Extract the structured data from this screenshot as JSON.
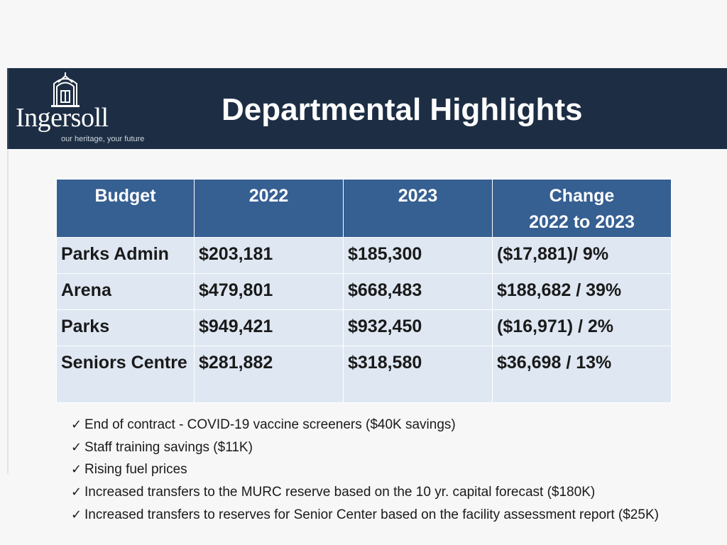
{
  "slide": {
    "title": "Departmental Highlights",
    "logo": {
      "name": "Ingersoll",
      "tagline": "our heritage, your future"
    }
  },
  "colors": {
    "banner": "#1d2e44",
    "table_header": "#365f92",
    "table_row": "#dfe7f2"
  },
  "table": {
    "headers": [
      {
        "lines": [
          "Budget"
        ]
      },
      {
        "lines": [
          "2022"
        ]
      },
      {
        "lines": [
          "2023"
        ]
      },
      {
        "lines": [
          "Change",
          "2022 to 2023"
        ]
      }
    ],
    "rows": [
      {
        "cells": [
          "Parks Admin",
          "$203,181",
          "$185,300",
          "($17,881)/ 9%"
        ]
      },
      {
        "cells": [
          "Arena",
          "$479,801",
          "$668,483",
          "$188,682 / 39%"
        ]
      },
      {
        "cells": [
          "Parks",
          "$949,421",
          "$932,450",
          "($16,971) / 2%"
        ]
      },
      {
        "cells": [
          "Seniors Centre",
          "$281,882",
          "$318,580",
          "$36,698 / 13%"
        ]
      }
    ]
  },
  "bullets": {
    "icon": "checkmark-icon",
    "items": [
      "End of contract - COVID-19 vaccine screeners ($40K savings)",
      "Staff training savings ($11K)",
      "Rising fuel prices",
      "Increased transfers to the MURC reserve based on the 10 yr. capital forecast ($180K)",
      "Increased transfers to reserves for Senior Center based on the facility assessment report ($25K)"
    ]
  }
}
